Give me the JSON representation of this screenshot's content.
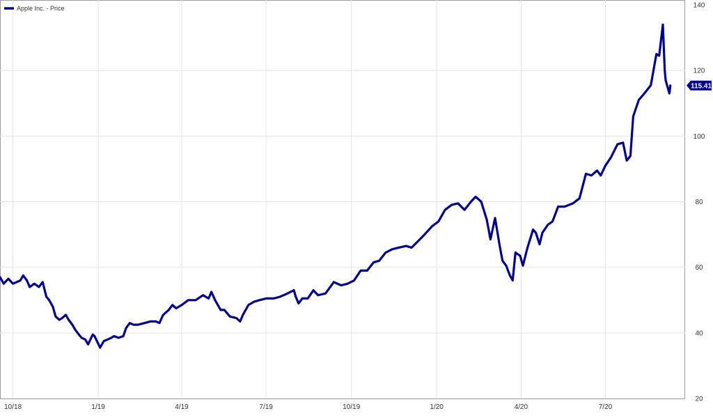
{
  "chart_data": {
    "type": "line",
    "series": [
      {
        "name": "Apple Inc. - Price",
        "color": "#00008b",
        "last_value_label": "115.41",
        "points": [
          [
            "2018-09-17",
            57.0
          ],
          [
            "2018-09-21",
            55.0
          ],
          [
            "2018-09-26",
            56.5
          ],
          [
            "2018-10-01",
            55.0
          ],
          [
            "2018-10-05",
            55.5
          ],
          [
            "2018-10-09",
            56.0
          ],
          [
            "2018-10-12",
            57.5
          ],
          [
            "2018-10-16",
            56.0
          ],
          [
            "2018-10-19",
            54.0
          ],
          [
            "2018-10-24",
            55.0
          ],
          [
            "2018-10-29",
            54.0
          ],
          [
            "2018-11-02",
            55.5
          ],
          [
            "2018-11-06",
            51.0
          ],
          [
            "2018-11-09",
            50.0
          ],
          [
            "2018-11-13",
            48.0
          ],
          [
            "2018-11-16",
            45.0
          ],
          [
            "2018-11-20",
            44.0
          ],
          [
            "2018-11-23",
            44.5
          ],
          [
            "2018-11-27",
            45.5
          ],
          [
            "2018-11-30",
            44.0
          ],
          [
            "2018-12-04",
            42.5
          ],
          [
            "2018-12-07",
            41.0
          ],
          [
            "2018-12-11",
            39.5
          ],
          [
            "2018-12-14",
            38.5
          ],
          [
            "2018-12-18",
            38.0
          ],
          [
            "2018-12-21",
            36.5
          ],
          [
            "2018-12-26",
            39.5
          ],
          [
            "2018-12-28",
            39.0
          ],
          [
            "2019-01-03",
            35.5
          ],
          [
            "2019-01-07",
            37.5
          ],
          [
            "2019-01-11",
            38.0
          ],
          [
            "2019-01-15",
            38.5
          ],
          [
            "2019-01-18",
            39.0
          ],
          [
            "2019-01-23",
            38.5
          ],
          [
            "2019-01-28",
            39.0
          ],
          [
            "2019-01-31",
            41.5
          ],
          [
            "2019-02-04",
            43.0
          ],
          [
            "2019-02-08",
            42.5
          ],
          [
            "2019-02-13",
            42.5
          ],
          [
            "2019-02-20",
            43.0
          ],
          [
            "2019-02-26",
            43.5
          ],
          [
            "2019-03-04",
            43.5
          ],
          [
            "2019-03-08",
            43.0
          ],
          [
            "2019-03-12",
            45.5
          ],
          [
            "2019-03-18",
            47.0
          ],
          [
            "2019-03-22",
            48.5
          ],
          [
            "2019-03-26",
            47.5
          ],
          [
            "2019-04-01",
            48.5
          ],
          [
            "2019-04-08",
            50.0
          ],
          [
            "2019-04-16",
            50.0
          ],
          [
            "2019-04-24",
            51.5
          ],
          [
            "2019-04-30",
            50.5
          ],
          [
            "2019-05-03",
            52.5
          ],
          [
            "2019-05-07",
            50.0
          ],
          [
            "2019-05-13",
            47.0
          ],
          [
            "2019-05-17",
            47.0
          ],
          [
            "2019-05-23",
            45.0
          ],
          [
            "2019-05-30",
            44.5
          ],
          [
            "2019-06-03",
            43.5
          ],
          [
            "2019-06-06",
            45.5
          ],
          [
            "2019-06-12",
            48.5
          ],
          [
            "2019-06-18",
            49.5
          ],
          [
            "2019-06-24",
            50.0
          ],
          [
            "2019-07-01",
            50.5
          ],
          [
            "2019-07-09",
            50.5
          ],
          [
            "2019-07-16",
            51.0
          ],
          [
            "2019-07-24",
            52.0
          ],
          [
            "2019-07-31",
            53.0
          ],
          [
            "2019-08-02",
            51.0
          ],
          [
            "2019-08-05",
            49.0
          ],
          [
            "2019-08-09",
            50.5
          ],
          [
            "2019-08-15",
            50.5
          ],
          [
            "2019-08-21",
            53.0
          ],
          [
            "2019-08-26",
            51.5
          ],
          [
            "2019-09-03",
            52.0
          ],
          [
            "2019-09-12",
            55.5
          ],
          [
            "2019-09-20",
            54.5
          ],
          [
            "2019-09-27",
            55.0
          ],
          [
            "2019-10-04",
            56.0
          ],
          [
            "2019-10-11",
            59.0
          ],
          [
            "2019-10-18",
            59.0
          ],
          [
            "2019-10-25",
            61.5
          ],
          [
            "2019-10-31",
            62.0
          ],
          [
            "2019-11-07",
            64.5
          ],
          [
            "2019-11-14",
            65.5
          ],
          [
            "2019-11-21",
            66.0
          ],
          [
            "2019-11-29",
            66.5
          ],
          [
            "2019-12-05",
            66.0
          ],
          [
            "2019-12-12",
            68.0
          ],
          [
            "2019-12-19",
            70.0
          ],
          [
            "2019-12-27",
            72.5
          ],
          [
            "2020-01-03",
            74.0
          ],
          [
            "2020-01-10",
            77.5
          ],
          [
            "2020-01-17",
            79.0
          ],
          [
            "2020-01-24",
            79.5
          ],
          [
            "2020-01-31",
            77.5
          ],
          [
            "2020-02-07",
            80.0
          ],
          [
            "2020-02-12",
            81.5
          ],
          [
            "2020-02-18",
            80.0
          ],
          [
            "2020-02-24",
            74.5
          ],
          [
            "2020-02-28",
            68.5
          ],
          [
            "2020-03-04",
            75.0
          ],
          [
            "2020-03-09",
            66.5
          ],
          [
            "2020-03-12",
            62.0
          ],
          [
            "2020-03-16",
            60.5
          ],
          [
            "2020-03-20",
            57.5
          ],
          [
            "2020-03-23",
            56.0
          ],
          [
            "2020-03-26",
            64.5
          ],
          [
            "2020-03-31",
            63.5
          ],
          [
            "2020-04-03",
            60.5
          ],
          [
            "2020-04-08",
            66.0
          ],
          [
            "2020-04-14",
            71.5
          ],
          [
            "2020-04-17",
            70.5
          ],
          [
            "2020-04-21",
            67.0
          ],
          [
            "2020-04-24",
            70.5
          ],
          [
            "2020-04-30",
            73.0
          ],
          [
            "2020-05-05",
            74.0
          ],
          [
            "2020-05-11",
            78.5
          ],
          [
            "2020-05-18",
            78.5
          ],
          [
            "2020-05-27",
            79.5
          ],
          [
            "2020-06-03",
            81.0
          ],
          [
            "2020-06-10",
            88.5
          ],
          [
            "2020-06-16",
            88.0
          ],
          [
            "2020-06-22",
            89.5
          ],
          [
            "2020-06-26",
            88.0
          ],
          [
            "2020-07-01",
            91.0
          ],
          [
            "2020-07-07",
            93.5
          ],
          [
            "2020-07-14",
            97.5
          ],
          [
            "2020-07-20",
            98.0
          ],
          [
            "2020-07-24",
            92.5
          ],
          [
            "2020-07-28",
            94.0
          ],
          [
            "2020-07-31",
            106.0
          ],
          [
            "2020-08-06",
            111.0
          ],
          [
            "2020-08-12",
            113.0
          ],
          [
            "2020-08-19",
            115.5
          ],
          [
            "2020-08-25",
            125.0
          ],
          [
            "2020-08-28",
            124.5
          ],
          [
            "2020-09-01",
            134.0
          ],
          [
            "2020-09-03",
            120.0
          ],
          [
            "2020-09-04",
            117.0
          ],
          [
            "2020-09-08",
            113.0
          ],
          [
            "2020-09-09",
            115.41
          ]
        ]
      }
    ],
    "x_axis": {
      "type": "date",
      "range": [
        "2018-09-17",
        "2020-09-25"
      ],
      "ticks": [
        {
          "value": "2018-10-01",
          "label": "10/18"
        },
        {
          "value": "2019-01-01",
          "label": "1/19"
        },
        {
          "value": "2019-04-01",
          "label": "4/19"
        },
        {
          "value": "2019-07-01",
          "label": "7/19"
        },
        {
          "value": "2019-10-01",
          "label": "10/19"
        },
        {
          "value": "2020-01-01",
          "label": "1/20"
        },
        {
          "value": "2020-04-01",
          "label": "4/20"
        },
        {
          "value": "2020-07-01",
          "label": "7/20"
        }
      ]
    },
    "y_axis": {
      "range": [
        20,
        140
      ],
      "position": "right",
      "ticks": [
        {
          "value": 20,
          "label": "20"
        },
        {
          "value": 40,
          "label": "40"
        },
        {
          "value": 60,
          "label": "60"
        },
        {
          "value": 80,
          "label": "80"
        },
        {
          "value": 100,
          "label": "100"
        },
        {
          "value": 120,
          "label": "120"
        },
        {
          "value": 140,
          "label": "140"
        }
      ]
    },
    "grid": true,
    "legend_position": "top-left",
    "title": ""
  }
}
